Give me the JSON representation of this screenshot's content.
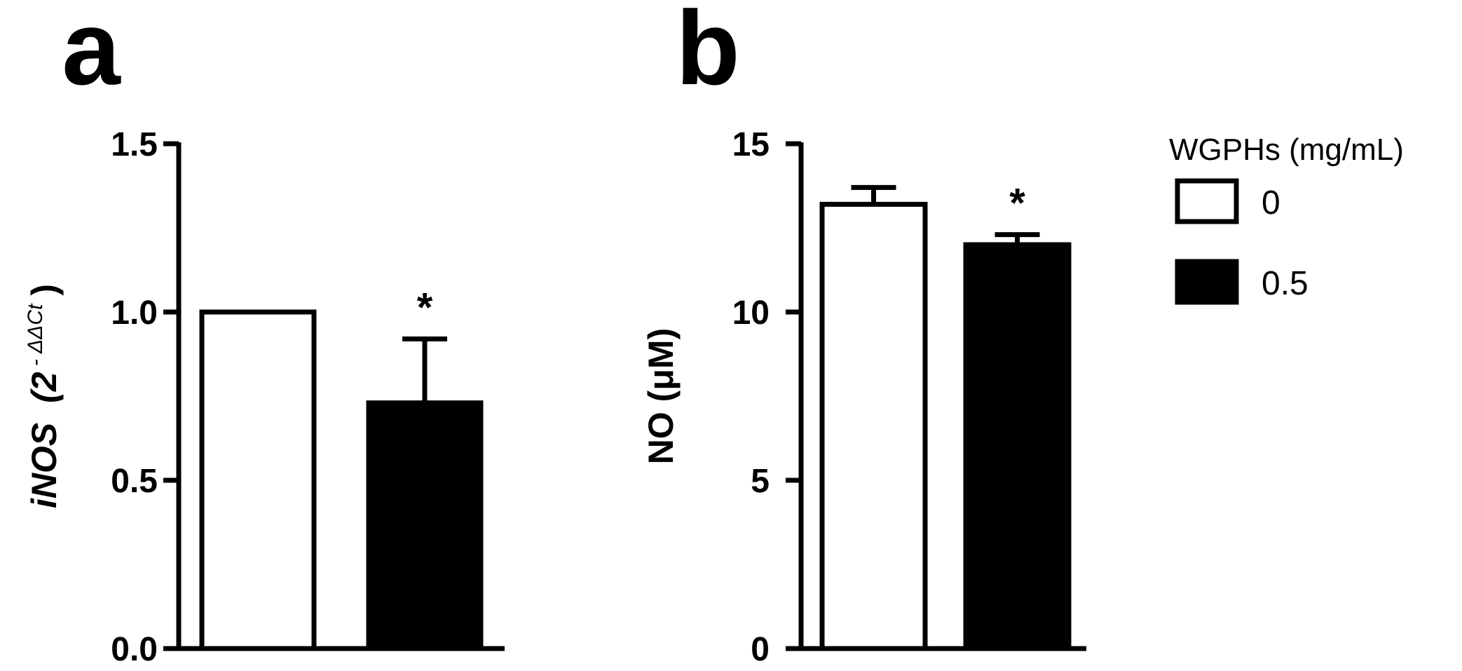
{
  "chart_data": [
    {
      "type": "bar",
      "panel_label": "a",
      "categories": [
        "0",
        "0.5"
      ],
      "values": [
        1.0,
        0.73
      ],
      "errors": [
        0,
        0.19
      ],
      "significance": [
        "",
        "*"
      ],
      "colors": [
        "#ffffff",
        "#000000"
      ],
      "ylabel_main": "iNOS",
      "ylabel_paren_open": "(2",
      "ylabel_sup": "- ΔΔCt",
      "ylabel_paren_close": ")",
      "ylim": [
        0,
        1.5
      ],
      "yticks": [
        0.0,
        0.5,
        1.0,
        1.5
      ],
      "ytick_labels": [
        "0.0",
        "0.5",
        "1.0",
        "1.5"
      ],
      "grid": false
    },
    {
      "type": "bar",
      "panel_label": "b",
      "categories": [
        "0",
        "0.5"
      ],
      "values": [
        13.2,
        12.0
      ],
      "errors": [
        0.5,
        0.3
      ],
      "significance": [
        "",
        "*"
      ],
      "colors": [
        "#ffffff",
        "#000000"
      ],
      "ylabel": "NO (μM)",
      "ylim": [
        0,
        15
      ],
      "yticks": [
        0,
        5,
        10,
        15
      ],
      "ytick_labels": [
        "0",
        "5",
        "10",
        "15"
      ],
      "grid": false
    }
  ],
  "legend": {
    "title": "WGPHs (mg/mL)",
    "placement": "right",
    "items": [
      {
        "label": "0",
        "color": "#ffffff"
      },
      {
        "label": "0.5",
        "color": "#000000"
      }
    ]
  }
}
